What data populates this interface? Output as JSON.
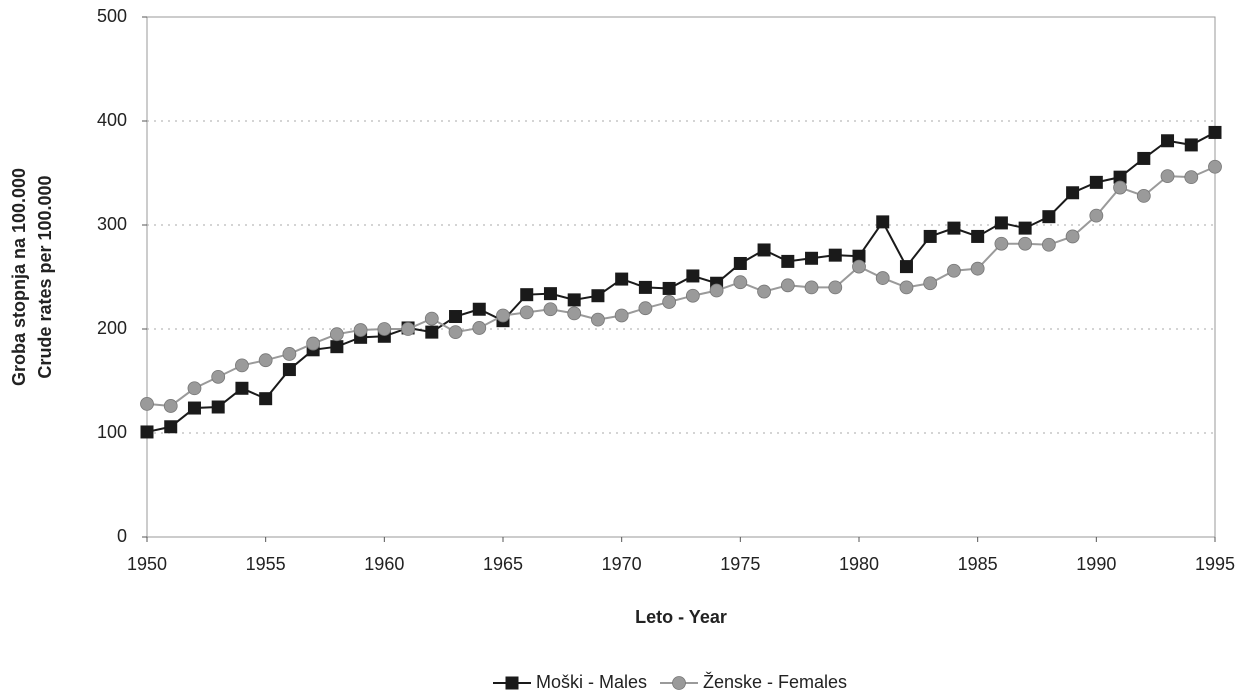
{
  "chart_data": {
    "type": "line",
    "ylabel": [
      "Groba stopnja na 100.000",
      "Crude rates per 100.000"
    ],
    "xlabel": "Leto - Year",
    "x": [
      1950,
      1951,
      1952,
      1953,
      1954,
      1955,
      1956,
      1957,
      1958,
      1959,
      1960,
      1961,
      1962,
      1963,
      1964,
      1965,
      1966,
      1967,
      1968,
      1969,
      1970,
      1971,
      1972,
      1973,
      1974,
      1975,
      1976,
      1977,
      1978,
      1979,
      1980,
      1981,
      1982,
      1983,
      1984,
      1985,
      1986,
      1987,
      1988,
      1989,
      1990,
      1991,
      1992,
      1993,
      1994,
      1995
    ],
    "series": [
      {
        "name": "Moški - Males",
        "color": "#1a1a1a",
        "marker": "square",
        "values": [
          101,
          106,
          124,
          125,
          143,
          133,
          161,
          180,
          183,
          192,
          193,
          201,
          197,
          212,
          219,
          208,
          233,
          234,
          228,
          232,
          248,
          240,
          239,
          251,
          244,
          263,
          276,
          265,
          268,
          271,
          270,
          303,
          260,
          289,
          297,
          289,
          302,
          297,
          308,
          331,
          341,
          346,
          364,
          381,
          377,
          389
        ]
      },
      {
        "name": "Ženske - Females",
        "color": "#9a9a9a",
        "marker": "circle",
        "values": [
          128,
          126,
          143,
          154,
          165,
          170,
          176,
          186,
          195,
          199,
          200,
          200,
          210,
          197,
          201,
          213,
          216,
          219,
          215,
          209,
          213,
          220,
          226,
          232,
          237,
          245,
          236,
          242,
          240,
          240,
          260,
          249,
          240,
          244,
          256,
          258,
          282,
          282,
          281,
          289,
          309,
          336,
          328,
          347,
          346,
          356
        ]
      }
    ],
    "xlim": [
      1950,
      1995
    ],
    "xticks": [
      1950,
      1955,
      1960,
      1965,
      1970,
      1975,
      1980,
      1985,
      1990,
      1995
    ],
    "ylim": [
      0,
      500
    ],
    "yticks": [
      0,
      100,
      200,
      300,
      400,
      500
    ],
    "grid": true,
    "legend": "bottom"
  }
}
